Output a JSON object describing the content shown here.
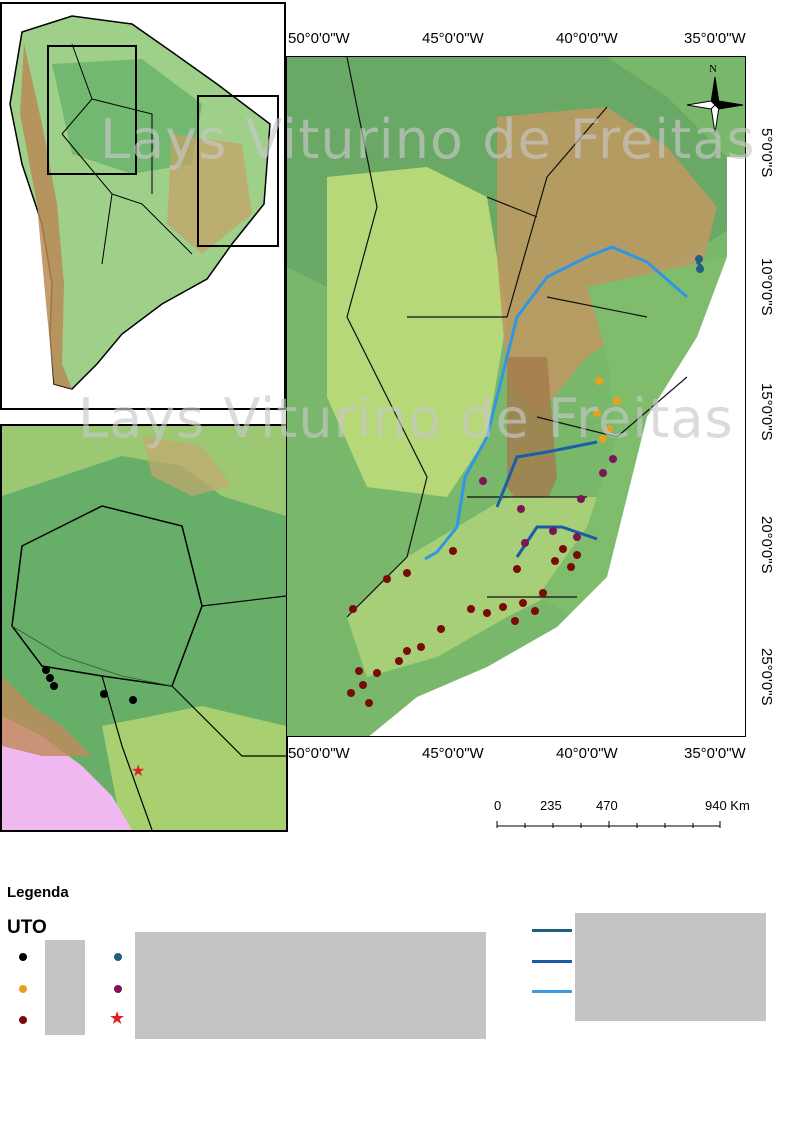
{
  "watermark": "Lays Viturino de Freitas",
  "top_axis": [
    "50°0'0\"W",
    "45°0'0\"W",
    "40°0'0\"W",
    "35°0'0\"W"
  ],
  "bottom_axis": [
    "50°0'0\"W",
    "45°0'0\"W",
    "40°0'0\"W",
    "35°0'0\"W"
  ],
  "right_axis": [
    "5°0'0\"S",
    "10°0'0\"S",
    "15°0'0\"S",
    "20°0'0\"S",
    "25°0'0\"S"
  ],
  "north_arrow": "N",
  "scale": {
    "ticks": [
      "0",
      "235",
      "470",
      "940 Km"
    ]
  },
  "legend": {
    "title": "Legenda",
    "group": "UTO",
    "dot_colors": [
      "#000000",
      "#e8a11d",
      "#7a0a0a",
      "#1f5f86",
      "#7a1557"
    ],
    "star_color": "#e02020",
    "line_colors": [
      "#1f5f7a",
      "#1c5aa8",
      "#3a9be0"
    ]
  },
  "colors": {
    "lowland": "#6fb06a",
    "plateau": "#a8cf70",
    "highland": "#c9a26b",
    "border": "#1a1a1a",
    "river_light": "#2f96e6",
    "river_dark": "#1a5fa8"
  }
}
